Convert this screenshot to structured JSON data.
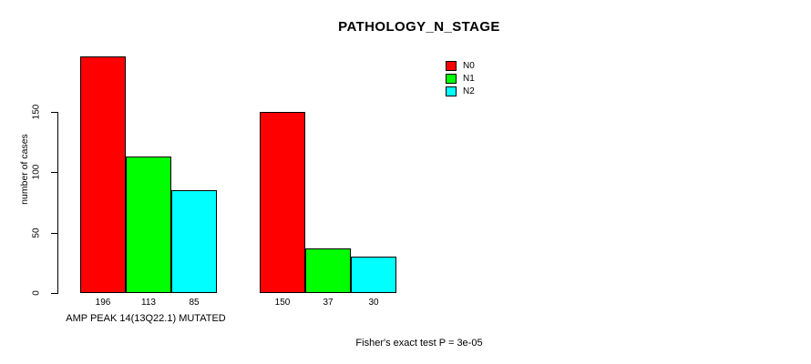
{
  "chart": {
    "title": "PATHOLOGY_N_STAGE",
    "ylabel": "number of cases",
    "group1_label": "AMP PEAK 14(13Q22.1) MUTATED",
    "footer": "Fisher's exact test P = 3e-05"
  },
  "chart_data": {
    "type": "bar",
    "title": "PATHOLOGY_N_STAGE",
    "xlabel": "AMP PEAK 14(13Q22.1) MUTATED",
    "ylabel": "number of cases",
    "categories": [
      "AMP PEAK 14(13Q22.1) MUTATED",
      ""
    ],
    "series": [
      {
        "name": "N0",
        "color": "#ff0000",
        "values": [
          196,
          150
        ]
      },
      {
        "name": "N1",
        "color": "#00ff00",
        "values": [
          113,
          37
        ]
      },
      {
        "name": "N2",
        "color": "#00ffff",
        "values": [
          85,
          30
        ]
      }
    ],
    "yticks": [
      0,
      50,
      100,
      150
    ],
    "ylim": [
      0,
      210
    ],
    "grid": false,
    "legend_position": "top-right",
    "annotation": "Fisher's exact test P = 3e-05",
    "axis_color": "#000000",
    "background_color": "#ffffff"
  }
}
